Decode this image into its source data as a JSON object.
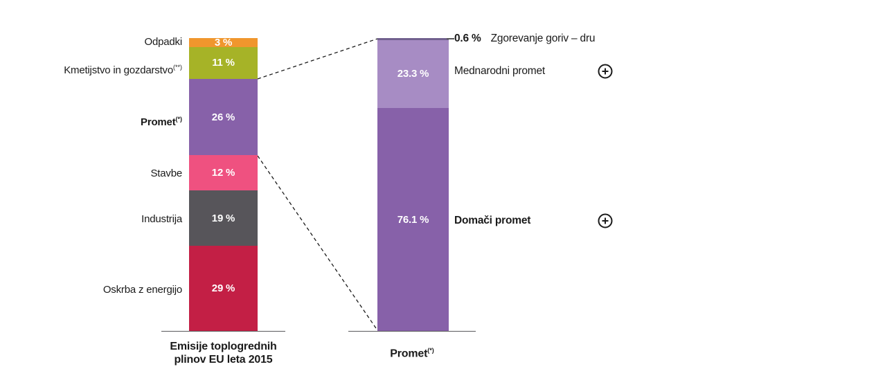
{
  "colors": {
    "background": "#ffffff",
    "text": "#1a1a1a",
    "value_text": "#ffffff",
    "axis_line": "#58585a",
    "leader_line": "#58585a",
    "connector_dash": "#1a1a1a"
  },
  "chart_data": {
    "type": "bar",
    "variant": "100%-stacked-bar-with-breakdown",
    "legend_position": "none",
    "grid": false,
    "expand_icon": "circled-plus",
    "left_bar": {
      "caption": [
        "Emisije toplogrednih",
        "plinov EU leta 2015"
      ],
      "unit": "%",
      "segments": [
        {
          "label": "Odpadki",
          "label_sup": "",
          "value": 3,
          "value_label": "3 %",
          "color": "#f0962d",
          "emphasis": false
        },
        {
          "label": "Kmetijstvo in gozdarstvo",
          "label_sup": "(**)",
          "value": 11,
          "value_label": "11 %",
          "color": "#a6b327",
          "emphasis": false
        },
        {
          "label": "Promet",
          "label_sup": "(*)",
          "value": 26,
          "value_label": "26 %",
          "color": "#8761a9",
          "emphasis": true
        },
        {
          "label": "Stavbe",
          "label_sup": "",
          "value": 12,
          "value_label": "12 %",
          "color": "#ef5180",
          "emphasis": false
        },
        {
          "label": "Industrija",
          "label_sup": "",
          "value": 19,
          "value_label": "19 %",
          "color": "#57555a",
          "emphasis": false
        },
        {
          "label": "Oskrba z energijo",
          "label_sup": "",
          "value": 29,
          "value_label": "29 %",
          "color": "#c31f45",
          "emphasis": false
        }
      ]
    },
    "right_bar": {
      "caption": "Promet",
      "caption_sup": "(*)",
      "unit": "%",
      "segments": [
        {
          "label": "Zgorevanje goriv – dru",
          "value": 0.6,
          "value_label": "0.6 %",
          "color": "#71608e",
          "emphasis": false,
          "expandable": false
        },
        {
          "label": "Mednarodni promet",
          "value": 23.3,
          "value_label": "23.3 %",
          "color": "#a78cc4",
          "emphasis": false,
          "expandable": true
        },
        {
          "label": "Domači promet",
          "value": 76.1,
          "value_label": "76.1 %",
          "color": "#8761a9",
          "emphasis": true,
          "expandable": true
        }
      ]
    }
  }
}
